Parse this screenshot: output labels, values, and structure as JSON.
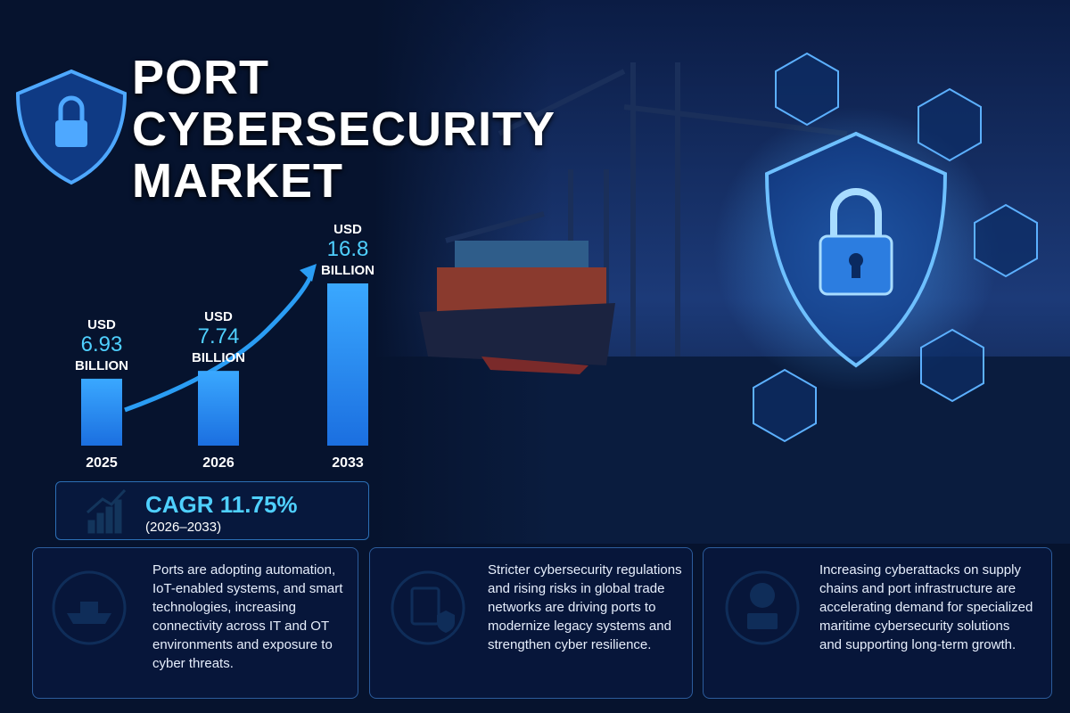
{
  "title_lines": [
    "PORT",
    "CYBERSECURITY",
    "MARKET"
  ],
  "chart_data": {
    "type": "bar",
    "categories": [
      "2025",
      "2026",
      "2033"
    ],
    "values": [
      6.93,
      7.74,
      16.8
    ],
    "unit_prefix": "USD",
    "unit_suffix": "BILLION",
    "color": "#2a9df4"
  },
  "cagr": {
    "label": "CAGR 11.75%",
    "period": "(2026–2033)"
  },
  "cards": [
    {
      "text": "Ports are adopting automation, IoT-enabled systems, and smart technologies, increasing connectivity across IT and OT environments and exposure to cyber threats."
    },
    {
      "text": "Stricter cybersecurity regulations and rising risks in global trade networks are driving ports to modernize legacy systems and strengthen cyber resilience."
    },
    {
      "text": "Increasing cyberattacks on supply chains and port infrastructure are accelerating demand for specialized maritime cybersecurity solutions and supporting long-term growth."
    }
  ]
}
